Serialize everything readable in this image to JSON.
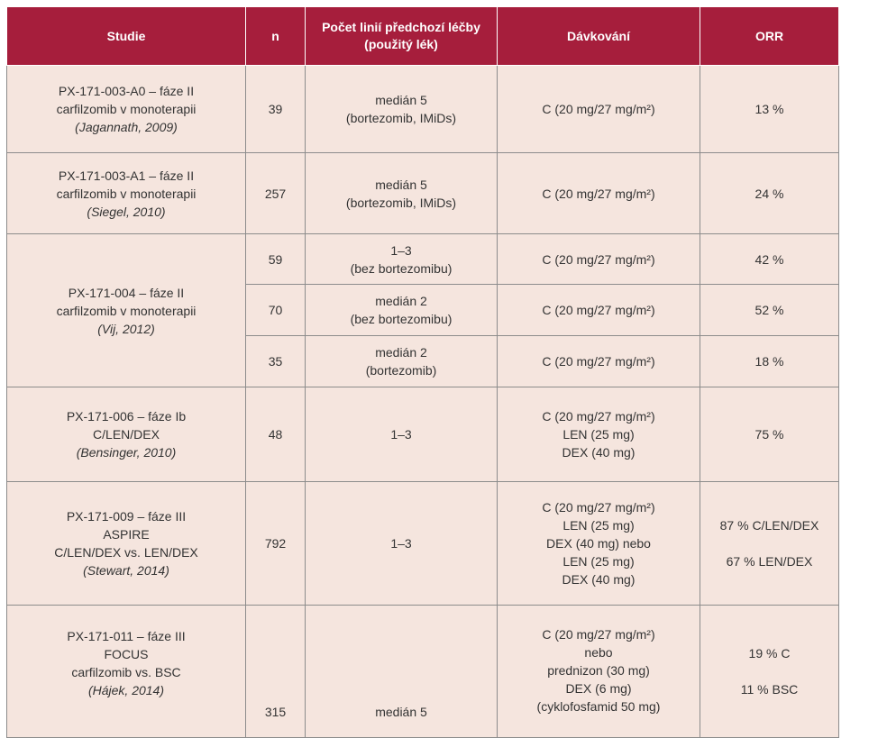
{
  "table": {
    "headers": [
      "Studie",
      "n",
      "Počet linií předchozí léčby (použitý lék)",
      "Dávkování",
      "ORR"
    ],
    "header_lines": {
      "c3": [
        "Počet linií předchozí léčby",
        "(použitý lék)"
      ]
    },
    "rows": [
      {
        "study": [
          "PX-171-003-A0 – fáze II",
          "carfilzomib v monoterapii",
          "(Jagannath, 2009)"
        ],
        "n": "39",
        "lines": [
          "medián 5",
          "(bortezomib, IMiDs)"
        ],
        "dosing": [
          "C (20 mg/27 mg/m²)"
        ],
        "orr": [
          "13 %"
        ]
      },
      {
        "study": [
          "PX-171-003-A1 – fáze II",
          "carfilzomib v monoterapii",
          "(Siegel, 2010)"
        ],
        "n": "257",
        "lines": [
          "medián 5",
          "(bortezomib, IMiDs)"
        ],
        "dosing": [
          "C (20 mg/27 mg/m²)"
        ],
        "orr": [
          "24 %"
        ]
      },
      {
        "study": [
          "PX-171-004 – fáze II",
          "carfilzomib v monoterapii",
          "(Vij, 2012)"
        ],
        "subrows": [
          {
            "n": "59",
            "lines": [
              "1–3",
              "(bez bortezomibu)"
            ],
            "dosing": [
              "C (20 mg/27 mg/m²)"
            ],
            "orr": [
              "42 %"
            ]
          },
          {
            "n": "70",
            "lines": [
              "medián 2",
              "(bez bortezomibu)"
            ],
            "dosing": [
              "C (20 mg/27 mg/m²)"
            ],
            "orr": [
              "52 %"
            ]
          },
          {
            "n": "35",
            "lines": [
              "medián 2",
              "(bortezomib)"
            ],
            "dosing": [
              "C (20 mg/27 mg/m²)"
            ],
            "orr": [
              "18 %"
            ]
          }
        ]
      },
      {
        "study": [
          "PX-171-006 – fáze Ib",
          "C/LEN/DEX",
          "(Bensinger, 2010)"
        ],
        "n": "48",
        "lines": [
          "1–3"
        ],
        "dosing": [
          "C (20 mg/27 mg/m²)",
          "LEN (25 mg)",
          "DEX (40 mg)"
        ],
        "orr": [
          "75 %"
        ]
      },
      {
        "study": [
          "PX-171-009 – fáze III",
          "ASPIRE",
          "C/LEN/DEX vs. LEN/DEX",
          "(Stewart, 2014)"
        ],
        "n": "792",
        "lines": [
          "1–3"
        ],
        "dosing": [
          "C (20 mg/27 mg/m²)",
          "LEN (25 mg)",
          "DEX (40 mg) nebo",
          "LEN (25 mg)",
          "DEX (40 mg)"
        ],
        "orr": [
          "87 % C/LEN/DEX",
          "67 % LEN/DEX"
        ]
      },
      {
        "study": [
          "PX-171-011 – fáze III",
          "FOCUS",
          "carfilzomib vs. BSC",
          "(Hájek, 2014)"
        ],
        "n": "315",
        "lines": [
          "medián 5"
        ],
        "dosing": [
          "C (20 mg/27 mg/m²)",
          "nebo",
          "prednizon (30 mg)",
          "DEX (6 mg)",
          "(cyklofosfamid 50 mg)"
        ],
        "orr": [
          "19 % C",
          "11 % BSC"
        ]
      }
    ]
  }
}
